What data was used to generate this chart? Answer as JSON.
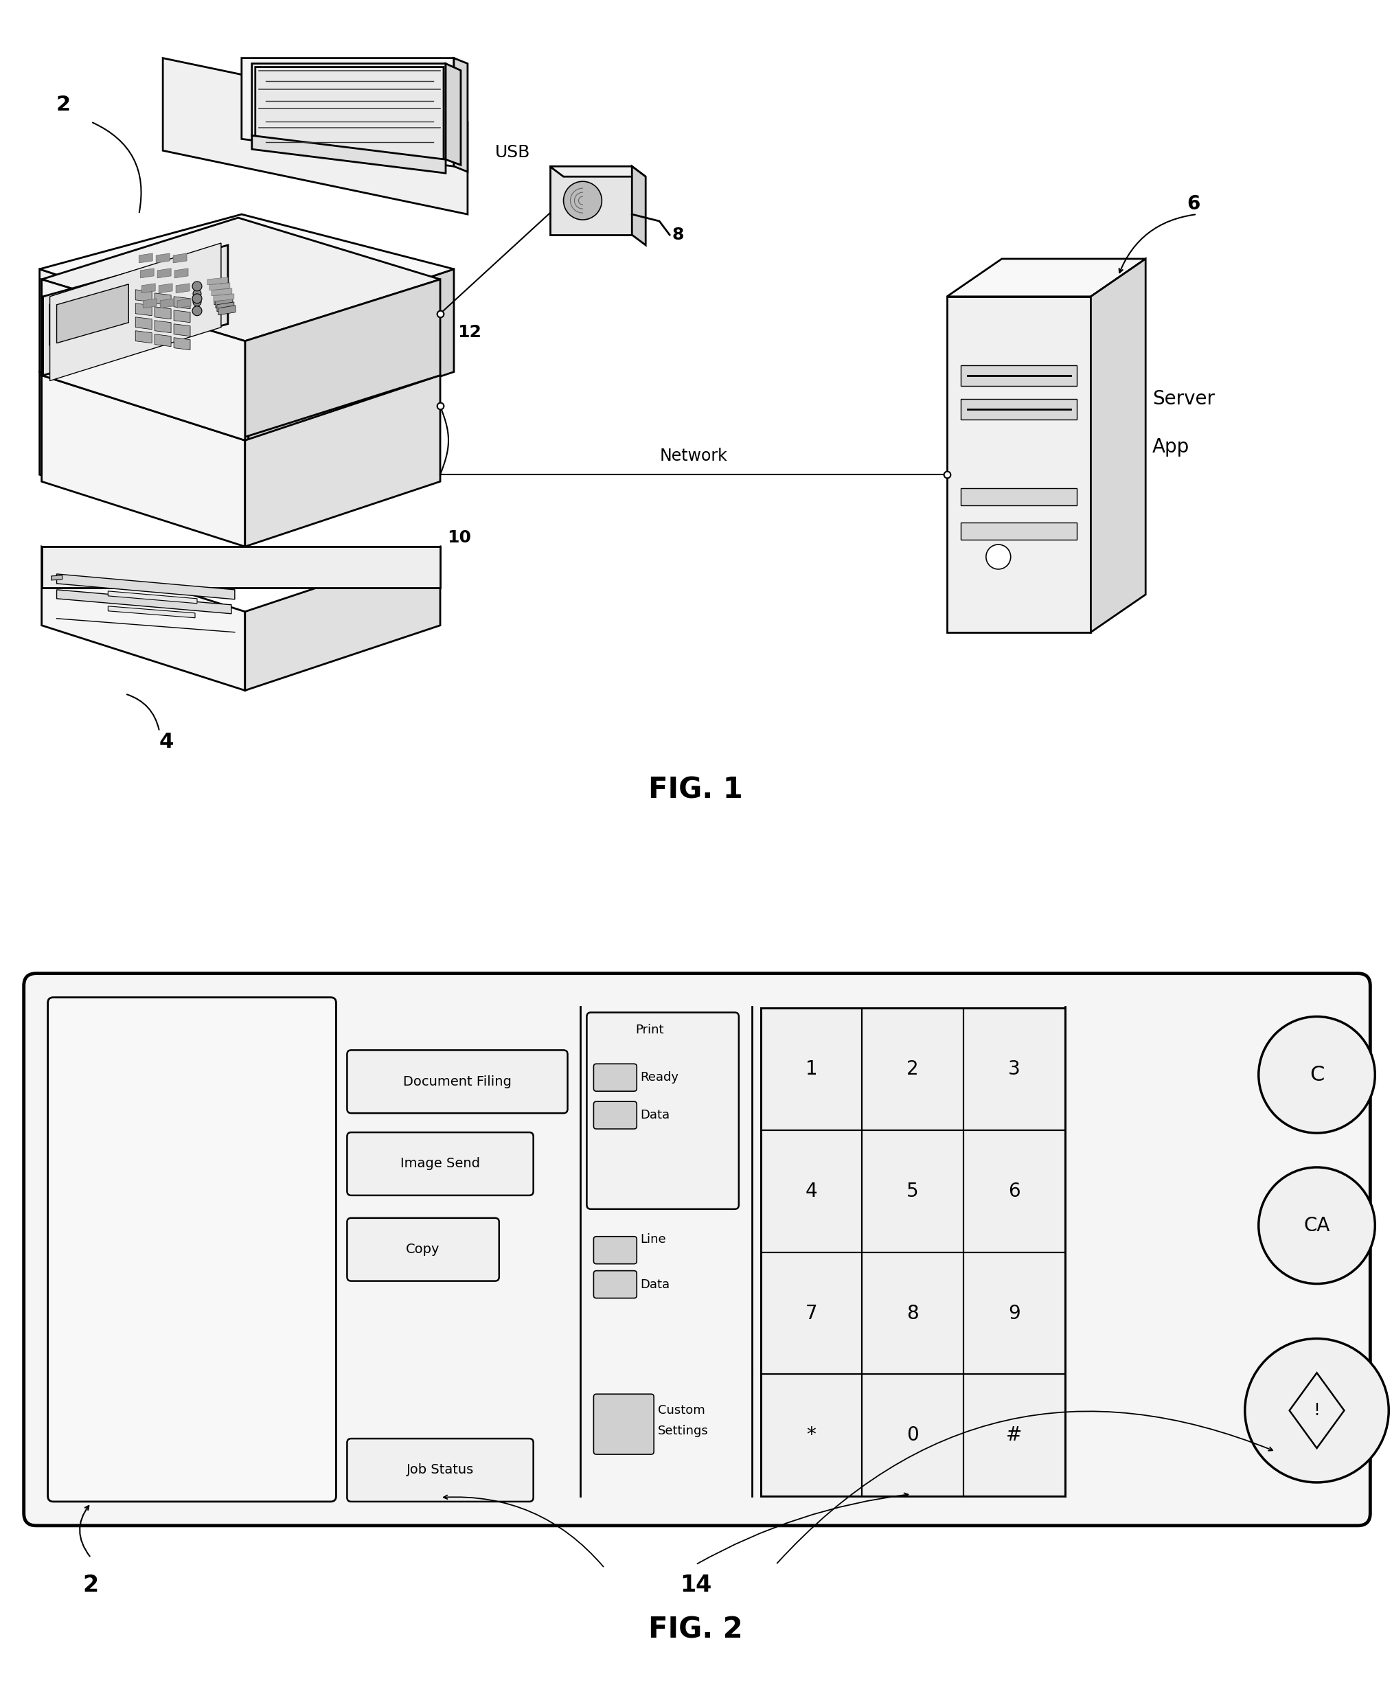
{
  "fig_width": 20.27,
  "fig_height": 24.86,
  "bg_color": "#ffffff",
  "fig1_title": "FIG. 1",
  "fig2_title": "FIG. 2",
  "line_color": "#000000",
  "lw_main": 2.0,
  "lw_thin": 1.2,
  "printer_label": "2",
  "base_label": "4",
  "server_label": "6",
  "usb_label": "8",
  "network_port_label": "10",
  "usb_port_label": "12",
  "control_panel_label": "14",
  "usb_text": "USB",
  "network_text": "Network",
  "server_text1": "Server",
  "server_text2": "App"
}
